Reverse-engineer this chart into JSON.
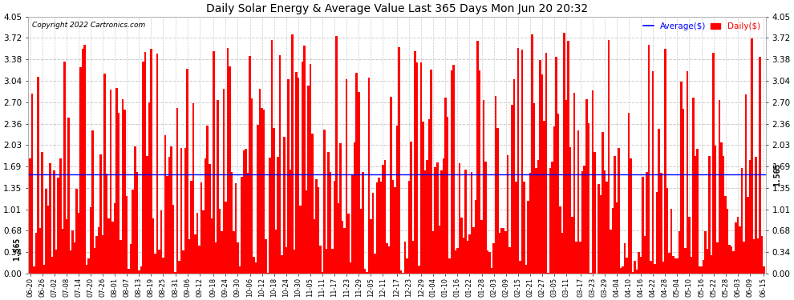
{
  "title": "Daily Solar Energy & Average Value Last 365 Days Mon Jun 20 20:32",
  "copyright": "Copyright 2022 Cartronics.com",
  "average_value": 1.565,
  "average_label": "1.565",
  "bar_color": "#ff0000",
  "average_line_color": "#0000ff",
  "background_color": "#ffffff",
  "grid_color": "#cccccc",
  "ylim": [
    0.0,
    4.05
  ],
  "yticks": [
    0.0,
    0.34,
    0.68,
    1.01,
    1.35,
    1.69,
    2.03,
    2.36,
    2.7,
    3.04,
    3.38,
    3.72,
    4.05
  ],
  "legend_average_color": "#0000ff",
  "legend_daily_color": "#ff0000",
  "x_labels": [
    "06-20",
    "06-26",
    "07-02",
    "07-08",
    "07-14",
    "07-20",
    "07-26",
    "08-01",
    "08-07",
    "08-13",
    "08-19",
    "08-25",
    "08-31",
    "09-06",
    "09-12",
    "09-18",
    "09-24",
    "09-30",
    "10-06",
    "10-12",
    "10-18",
    "10-24",
    "10-30",
    "11-05",
    "11-11",
    "11-17",
    "11-23",
    "11-29",
    "12-05",
    "12-11",
    "12-17",
    "12-23",
    "12-29",
    "01-04",
    "01-10",
    "01-16",
    "01-22",
    "01-28",
    "02-03",
    "02-09",
    "02-15",
    "02-21",
    "02-27",
    "03-05",
    "03-11",
    "03-17",
    "03-23",
    "03-29",
    "04-04",
    "04-10",
    "04-16",
    "04-22",
    "04-28",
    "05-04",
    "05-10",
    "05-16",
    "05-22",
    "05-28",
    "06-03",
    "06-09",
    "06-15"
  ],
  "seed": 42,
  "n_bars": 365,
  "figsize": [
    9.9,
    3.75
  ],
  "dpi": 100
}
